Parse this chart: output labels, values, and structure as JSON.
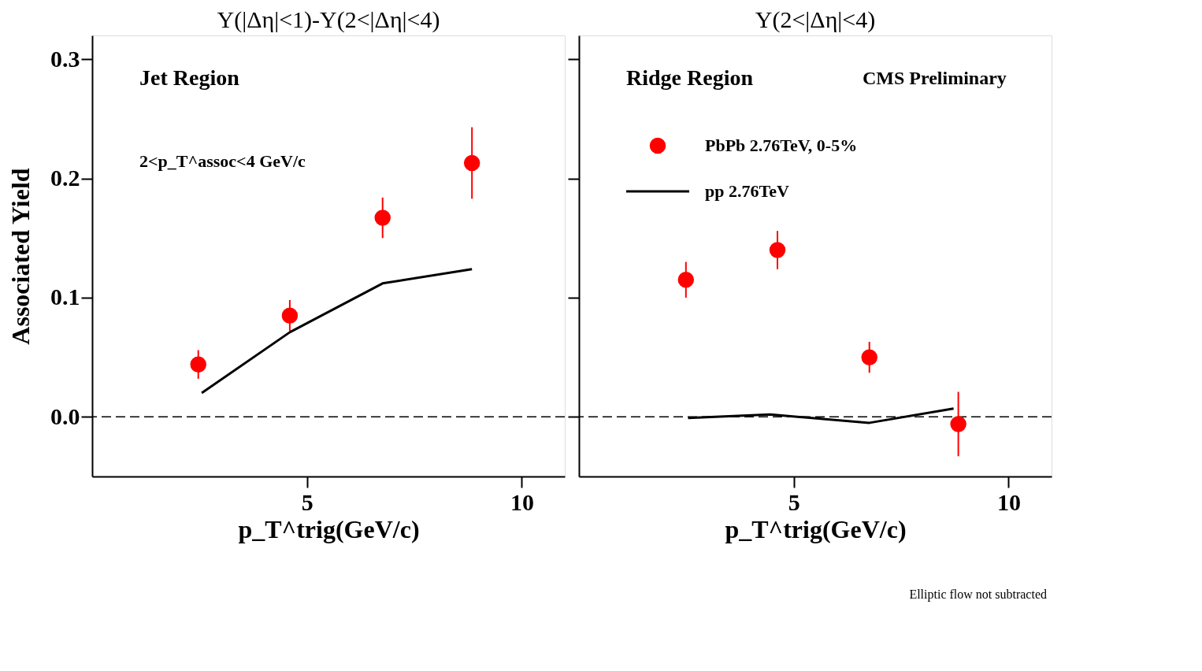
{
  "chart_data": [
    {
      "type": "scatter",
      "title": "Y(|Δη|<1)-Y(2<|Δη|<4)",
      "xlabel": "p_T^trig(GeV/c)",
      "ylabel": "Associated Yield",
      "annotations": [
        "Jet Region",
        "2<p_T^assoc<4 GeV/c"
      ],
      "xlim": [
        0,
        11
      ],
      "xticks": [
        5,
        10
      ],
      "ylim": [
        -0.05,
        0.32
      ],
      "yticks": [
        {
          "value": 0,
          "label": "0.0"
        },
        {
          "value": 0.1,
          "label": "0.1"
        },
        {
          "value": 0.2,
          "label": "0.2"
        },
        {
          "value": 0.3,
          "label": "0.3"
        }
      ],
      "grid": false,
      "legend": false,
      "ref_lines": [
        {
          "axis": "y",
          "value": 0,
          "line_style": "dashed",
          "color": "#000000"
        }
      ],
      "series": [
        {
          "type": "scatter",
          "marker": "circle",
          "color": "#ff0000",
          "x": [
            2.47,
            4.6,
            6.76,
            8.84
          ],
          "values": [
            0.044,
            0.085,
            0.167,
            0.213
          ],
          "errors": [
            0.012,
            0.013,
            0.017,
            0.03
          ]
        },
        {
          "type": "line",
          "color": "#000000",
          "x": [
            2.55,
            4.6,
            6.76,
            8.84
          ],
          "values": [
            0.02,
            0.071,
            0.112,
            0.124
          ]
        }
      ]
    },
    {
      "type": "scatter",
      "title": "Y(2<|Δη|<4)",
      "xlabel": "p_T^trig(GeV/c)",
      "annotations": [
        "Ridge Region",
        "CMS Preliminary",
        "Elliptic flow not subtracted"
      ],
      "xlim": [
        0,
        11
      ],
      "xticks": [
        5,
        10
      ],
      "ylim": [
        -0.05,
        0.32
      ],
      "yticks": [
        {
          "value": 0,
          "label": null
        },
        {
          "value": 0.1,
          "label": null
        },
        {
          "value": 0.2,
          "label": null
        },
        {
          "value": 0.3,
          "label": null
        }
      ],
      "tick_labels": "x",
      "grid": false,
      "legend": "top left",
      "ref_lines": [
        {
          "axis": "y",
          "value": 0,
          "line_style": "dashed",
          "color": "#000000"
        }
      ],
      "series": [
        {
          "name": "PbPb 2.76TeV, 0-5%",
          "type": "scatter",
          "marker": "circle",
          "color": "#ff0000",
          "x": [
            2.49,
            4.62,
            6.76,
            8.83
          ],
          "values": [
            0.115,
            0.14,
            0.05,
            -0.006
          ],
          "errors": [
            0.015,
            0.016,
            0.013,
            0.027
          ]
        },
        {
          "name": "pp 2.76TeV",
          "type": "line",
          "color": "#000000",
          "x": [
            2.54,
            4.45,
            6.76,
            8.72
          ],
          "values": [
            -0.001,
            0.002,
            -0.005,
            0.007
          ]
        }
      ]
    }
  ]
}
